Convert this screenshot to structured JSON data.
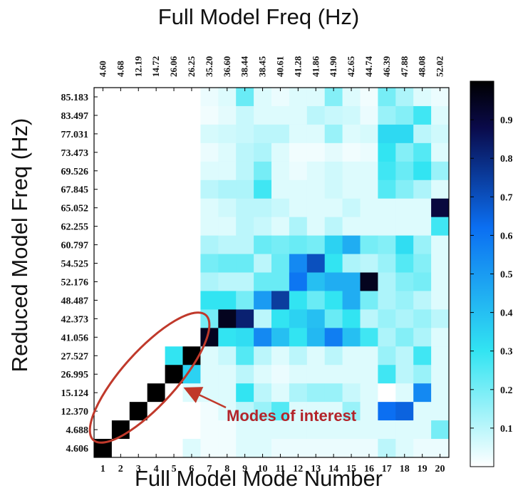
{
  "chart_data": {
    "type": "heatmap",
    "title": "Full Model Freq (Hz)",
    "xlabel": "Full Model Mode Number",
    "ylabel": "Reduced Model Freq (Hz)",
    "x_mode_numbers": [
      "1",
      "2",
      "3",
      "4",
      "5",
      "6",
      "7",
      "8",
      "9",
      "10",
      "11",
      "12",
      "13",
      "14",
      "15",
      "16",
      "17",
      "18",
      "19",
      "20"
    ],
    "x_top_freqs": [
      "4.60",
      "4.68",
      "12.19",
      "14.72",
      "26.06",
      "26.25",
      "35.20",
      "36.60",
      "38.44",
      "38.45",
      "40.61",
      "41.28",
      "41.86",
      "41.90",
      "42.65",
      "44.74",
      "46.39",
      "47.88",
      "48.08",
      "52.02"
    ],
    "y_freqs": [
      "85.183",
      "83.497",
      "77.031",
      "73.473",
      "69.526",
      "67.845",
      "65.052",
      "62.255",
      "60.797",
      "54.525",
      "52.176",
      "48.487",
      "42.373",
      "41.056",
      "27.527",
      "26.995",
      "15.124",
      "12.370",
      "4.688",
      "4.606"
    ],
    "matrix": [
      [
        0.0,
        0.0,
        0.0,
        0.0,
        0.0,
        0.0,
        0.03,
        0.05,
        0.22,
        0.05,
        0.03,
        0.05,
        0.05,
        0.18,
        0.05,
        0.02,
        0.2,
        0.12,
        0.05,
        0.03
      ],
      [
        0.0,
        0.0,
        0.0,
        0.0,
        0.0,
        0.0,
        0.02,
        0.04,
        0.08,
        0.05,
        0.05,
        0.05,
        0.1,
        0.08,
        0.07,
        0.03,
        0.15,
        0.18,
        0.28,
        0.05
      ],
      [
        0.0,
        0.0,
        0.0,
        0.0,
        0.0,
        0.0,
        0.06,
        0.07,
        0.08,
        0.1,
        0.1,
        0.05,
        0.05,
        0.15,
        0.05,
        0.06,
        0.33,
        0.33,
        0.1,
        0.07
      ],
      [
        0.0,
        0.0,
        0.0,
        0.0,
        0.0,
        0.0,
        0.03,
        0.05,
        0.1,
        0.12,
        0.05,
        0.02,
        0.02,
        0.04,
        0.02,
        0.03,
        0.3,
        0.18,
        0.25,
        0.05
      ],
      [
        0.0,
        0.0,
        0.0,
        0.0,
        0.0,
        0.0,
        0.05,
        0.05,
        0.1,
        0.2,
        0.05,
        0.03,
        0.05,
        0.07,
        0.05,
        0.05,
        0.28,
        0.22,
        0.3,
        0.15
      ],
      [
        0.0,
        0.0,
        0.0,
        0.0,
        0.0,
        0.0,
        0.1,
        0.12,
        0.12,
        0.28,
        0.05,
        0.05,
        0.05,
        0.07,
        0.05,
        0.05,
        0.25,
        0.18,
        0.12,
        0.05
      ],
      [
        0.0,
        0.0,
        0.0,
        0.0,
        0.0,
        0.0,
        0.05,
        0.07,
        0.1,
        0.1,
        0.08,
        0.05,
        0.05,
        0.05,
        0.08,
        0.05,
        0.05,
        0.05,
        0.05,
        0.9
      ],
      [
        0.0,
        0.0,
        0.0,
        0.0,
        0.0,
        0.0,
        0.05,
        0.05,
        0.1,
        0.08,
        0.05,
        0.12,
        0.05,
        0.1,
        0.05,
        0.05,
        0.05,
        0.05,
        0.05,
        0.28
      ],
      [
        0.0,
        0.0,
        0.0,
        0.0,
        0.0,
        0.0,
        0.12,
        0.1,
        0.1,
        0.22,
        0.2,
        0.22,
        0.2,
        0.35,
        0.45,
        0.2,
        0.18,
        0.32,
        0.15,
        0.05
      ],
      [
        0.0,
        0.0,
        0.0,
        0.0,
        0.0,
        0.0,
        0.2,
        0.22,
        0.22,
        0.1,
        0.22,
        0.55,
        0.7,
        0.3,
        0.12,
        0.1,
        0.15,
        0.25,
        0.18,
        0.05
      ],
      [
        0.0,
        0.0,
        0.0,
        0.0,
        0.0,
        0.0,
        0.12,
        0.1,
        0.1,
        0.22,
        0.22,
        0.6,
        0.4,
        0.45,
        0.45,
        0.95,
        0.12,
        0.18,
        0.2,
        0.05
      ],
      [
        0.0,
        0.0,
        0.0,
        0.0,
        0.0,
        0.0,
        0.3,
        0.3,
        0.2,
        0.5,
        0.75,
        0.3,
        0.22,
        0.3,
        0.45,
        0.2,
        0.12,
        0.15,
        0.1,
        0.05
      ],
      [
        0.0,
        0.0,
        0.0,
        0.0,
        0.0,
        0.0,
        0.2,
        0.95,
        0.82,
        0.1,
        0.3,
        0.35,
        0.4,
        0.22,
        0.3,
        0.1,
        0.15,
        0.12,
        0.15,
        0.1
      ],
      [
        0.0,
        0.0,
        0.0,
        0.0,
        0.0,
        0.0,
        0.95,
        0.3,
        0.32,
        0.55,
        0.4,
        0.3,
        0.42,
        0.58,
        0.4,
        0.28,
        0.12,
        0.18,
        0.12,
        0.05
      ],
      [
        0.0,
        0.0,
        0.0,
        0.0,
        0.3,
        1.0,
        0.05,
        0.08,
        0.25,
        0.1,
        0.05,
        0.1,
        0.05,
        0.1,
        0.05,
        0.05,
        0.15,
        0.1,
        0.28,
        0.05
      ],
      [
        0.0,
        0.0,
        0.0,
        0.0,
        1.0,
        0.35,
        0.05,
        0.05,
        0.1,
        0.05,
        0.03,
        0.05,
        0.05,
        0.05,
        0.05,
        0.05,
        0.28,
        0.1,
        0.15,
        0.05
      ],
      [
        0.0,
        0.0,
        0.0,
        1.0,
        0.0,
        0.05,
        0.05,
        0.05,
        0.3,
        0.1,
        0.05,
        0.12,
        0.15,
        0.15,
        0.08,
        0.05,
        0.0,
        0.05,
        0.55,
        0.05
      ],
      [
        0.0,
        0.0,
        1.0,
        0.0,
        0.0,
        0.0,
        0.02,
        0.05,
        0.1,
        0.15,
        0.25,
        0.05,
        0.05,
        0.05,
        0.15,
        0.05,
        0.62,
        0.65,
        0.05,
        0.05
      ],
      [
        0.0,
        1.0,
        0.0,
        0.0,
        0.0,
        0.0,
        0.02,
        0.02,
        0.05,
        0.05,
        0.05,
        0.05,
        0.05,
        0.05,
        0.05,
        0.05,
        0.05,
        0.05,
        0.05,
        0.2
      ],
      [
        1.0,
        0.0,
        0.0,
        0.0,
        0.0,
        0.05,
        0.02,
        0.02,
        0.05,
        0.05,
        0.03,
        0.03,
        0.03,
        0.03,
        0.03,
        0.03,
        0.1,
        0.05,
        0.03,
        0.03
      ]
    ],
    "colorbar": {
      "ticks": [
        "0.1",
        "0.2",
        "0.3",
        "0.4",
        "0.5",
        "0.6",
        "0.7",
        "0.8",
        "0.9"
      ],
      "range": [
        0,
        1
      ]
    },
    "colormap": [
      "#ffffff",
      "#32e4f2",
      "#0b6ff2",
      "#0a0a4a",
      "#000000"
    ],
    "annotation": {
      "text": "Modes of interest",
      "color": "#b3242a"
    }
  }
}
